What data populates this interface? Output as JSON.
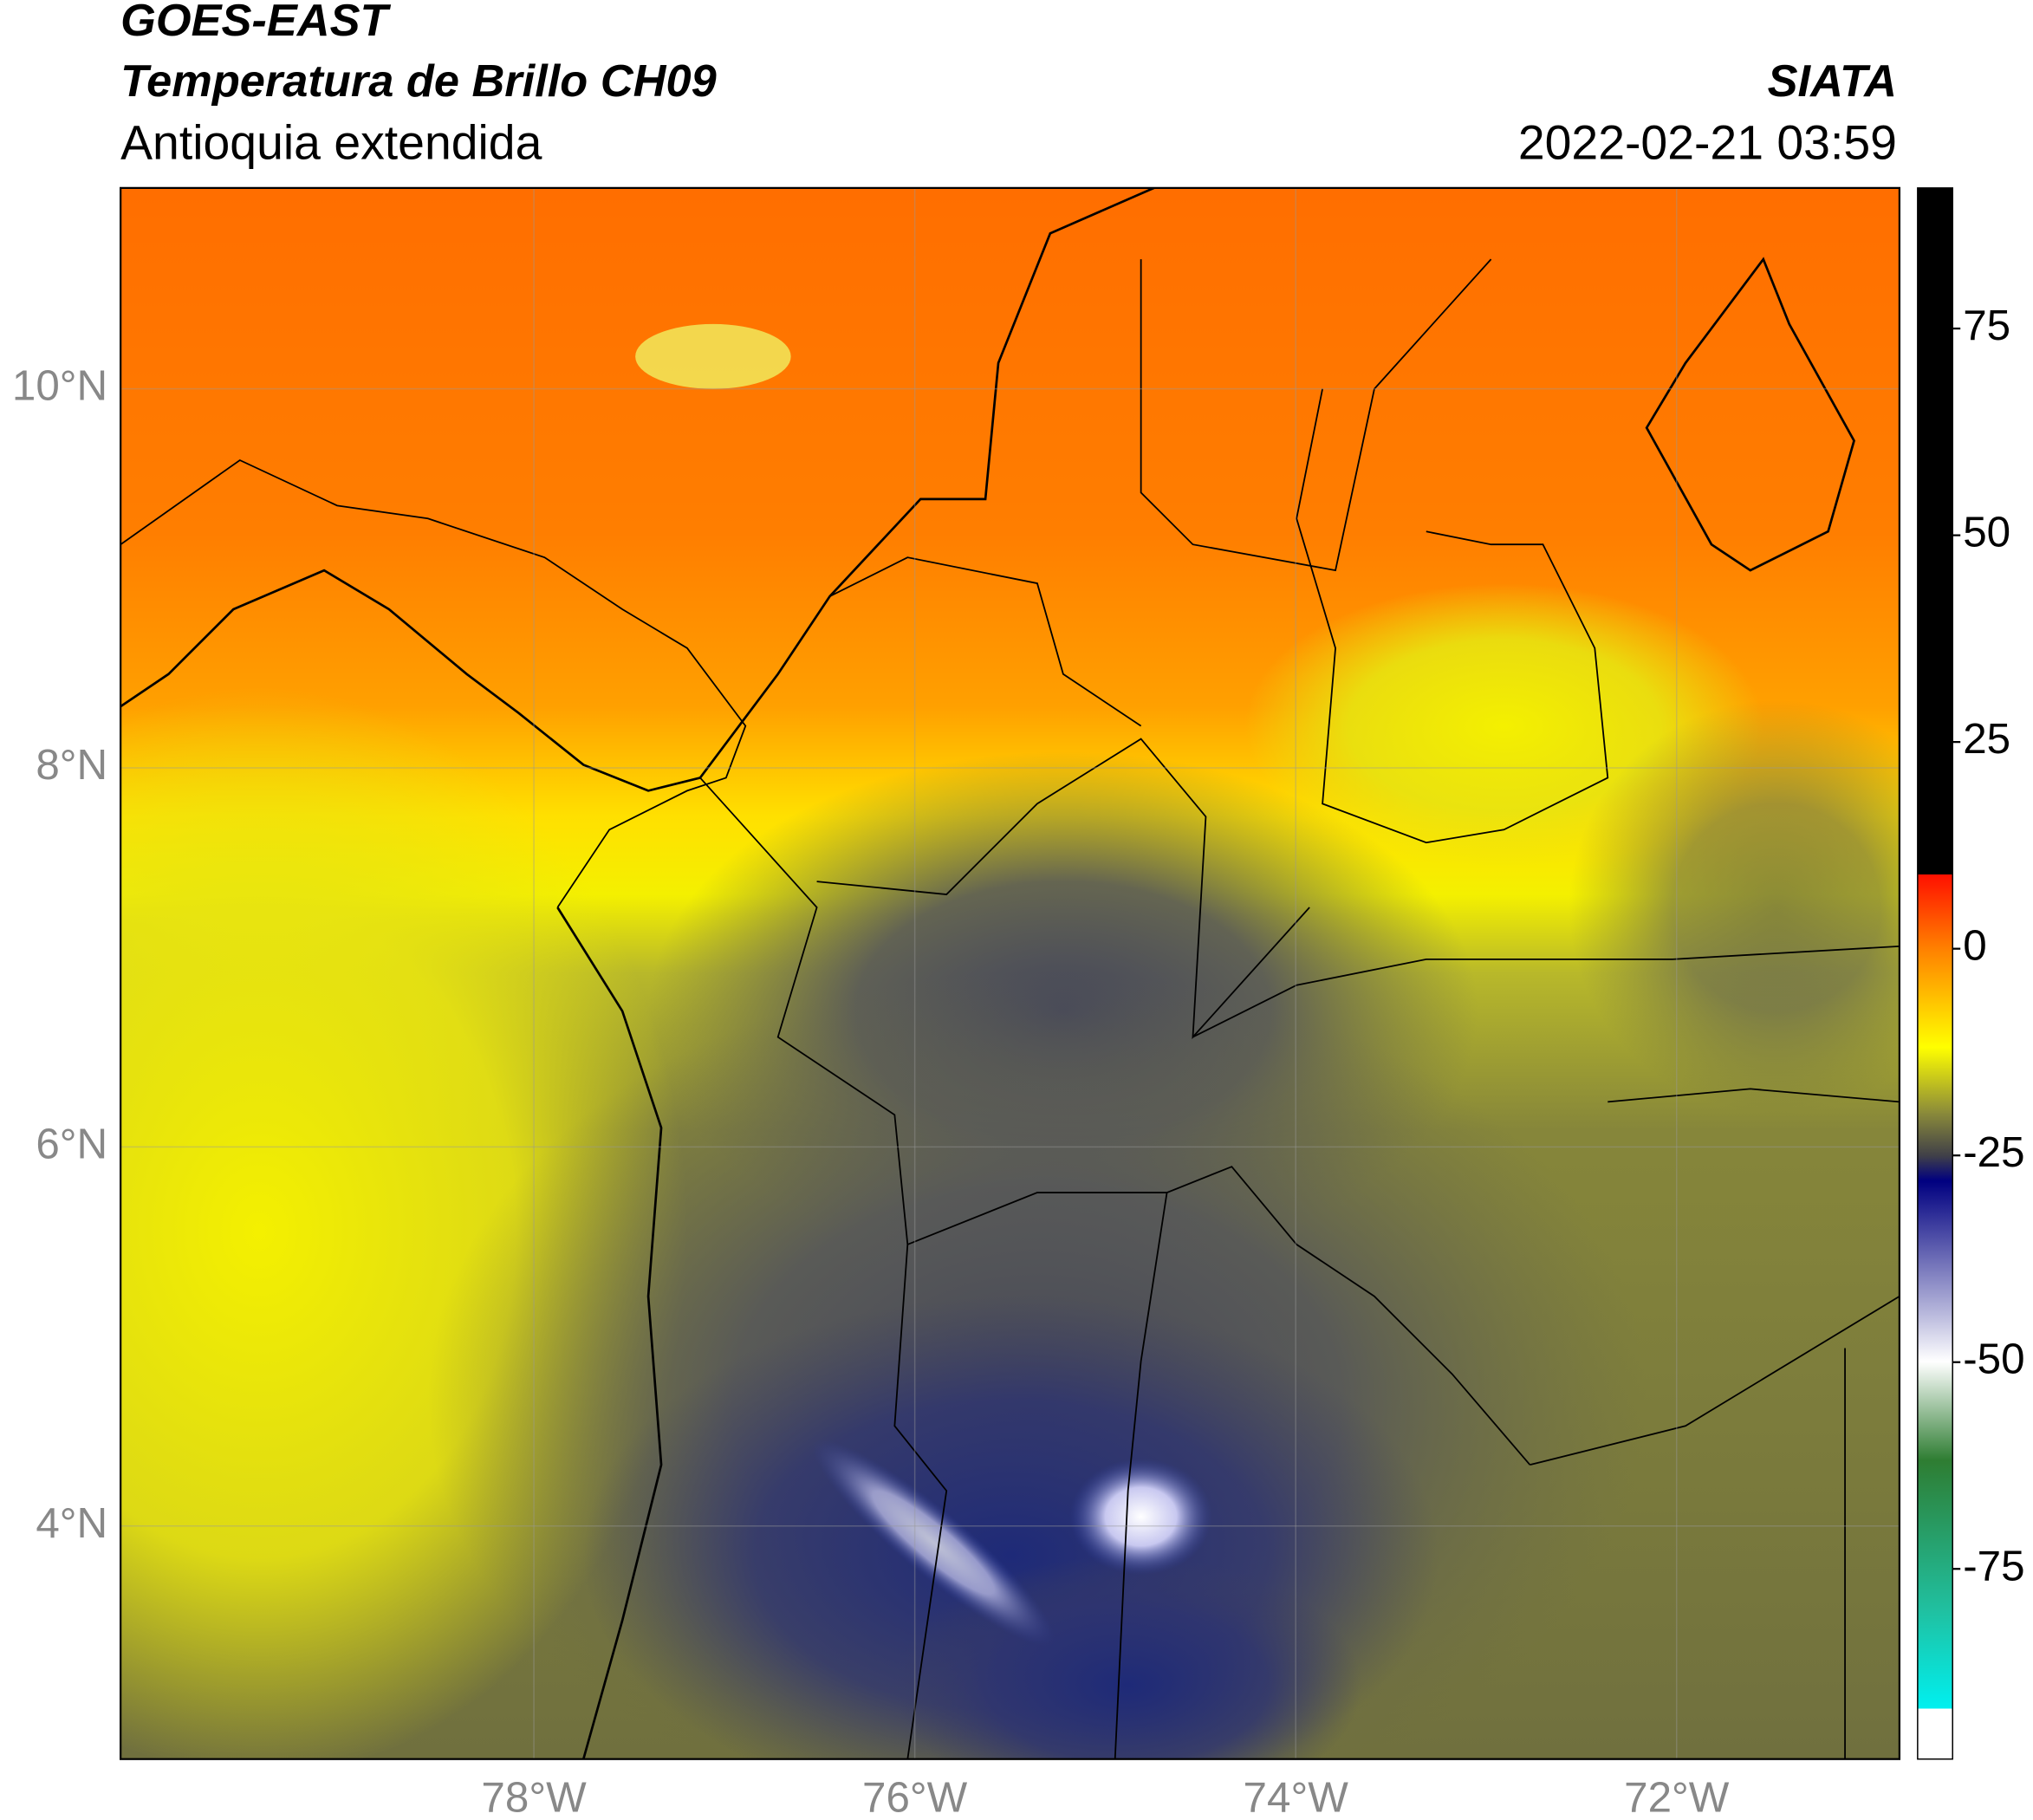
{
  "header": {
    "title": "GOES-EAST",
    "subtitle": "Temperatura de Brillo CH09",
    "region": "Antioquia extendida",
    "source": "SIATA",
    "datetime": "2022-02-21 03:59"
  },
  "map": {
    "lonlim": [
      -80.17,
      -70.83
    ],
    "latlim": [
      2.77,
      11.06
    ],
    "lonticks": [
      {
        "value": -78,
        "label": "78°W"
      },
      {
        "value": -76,
        "label": "76°W"
      },
      {
        "value": -74,
        "label": "74°W"
      },
      {
        "value": -72,
        "label": "72°W"
      }
    ],
    "latticks": [
      {
        "value": 10,
        "label": "10°N"
      },
      {
        "value": 8,
        "label": "8°N"
      },
      {
        "value": 6,
        "label": "6°N"
      },
      {
        "value": 4,
        "label": "4°N"
      }
    ],
    "grid": true
  },
  "colorbar": {
    "lim": [
      -98,
      92
    ],
    "ticks": [
      75,
      50,
      25,
      0,
      -25,
      -50,
      -75
    ]
  }
}
